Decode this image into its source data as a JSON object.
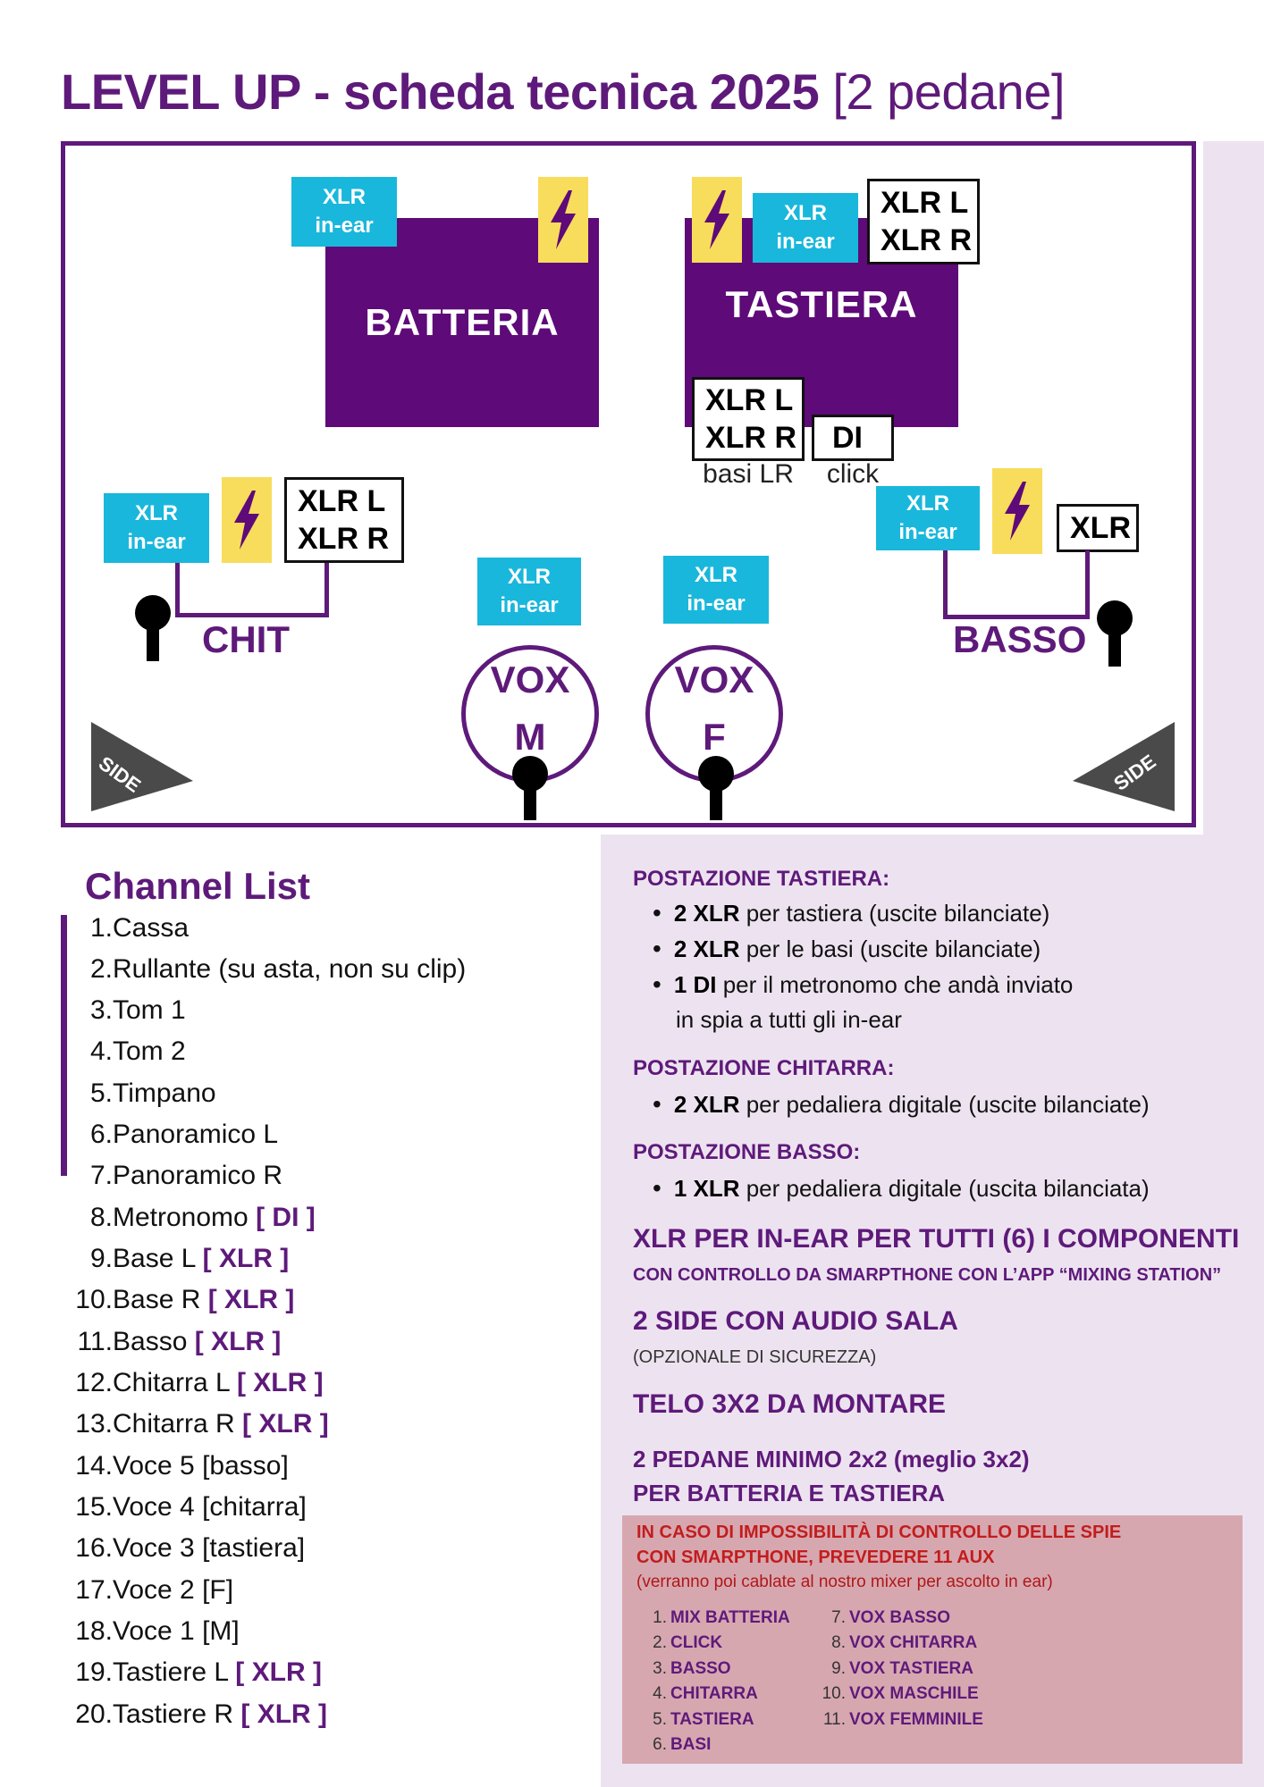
{
  "title": {
    "main": "LEVEL UP - scheda tecnica 2025",
    "sub": "[2 pedane]"
  },
  "stage": {
    "batteria": "BATTERIA",
    "tastiera": "TASTIERA",
    "xlr_inear": [
      "XLR",
      "in-ear"
    ],
    "xlr_lr": [
      "XLR L",
      "XLR R"
    ],
    "di": "DI",
    "basi_lr": "basi LR",
    "click": "click",
    "xlr": "XLR",
    "chit": "CHIT",
    "basso": "BASSO",
    "vox_label": "VOX",
    "vox_m": "M",
    "vox_f": "F",
    "side": "SIDE"
  },
  "channel_list": {
    "title": "Channel List",
    "items": [
      {
        "n": "1.",
        "text": "Cassa",
        "tag": ""
      },
      {
        "n": "2.",
        "text": "Rullante (su asta, non su clip)",
        "tag": ""
      },
      {
        "n": "3.",
        "text": "Tom 1",
        "tag": ""
      },
      {
        "n": "4.",
        "text": "Tom 2",
        "tag": ""
      },
      {
        "n": "5.",
        "text": "Timpano",
        "tag": ""
      },
      {
        "n": "6.",
        "text": "Panoramico L",
        "tag": ""
      },
      {
        "n": "7.",
        "text": "Panoramico R",
        "tag": ""
      },
      {
        "n": "8.",
        "text": "Metronomo",
        "tag": "[ DI ]"
      },
      {
        "n": "9.",
        "text": "Base L",
        "tag": "[ XLR ]"
      },
      {
        "n": "10.",
        "text": "Base R",
        "tag": "[ XLR ]"
      },
      {
        "n": "11.",
        "text": "Basso",
        "tag": "[ XLR ]"
      },
      {
        "n": "12.",
        "text": "Chitarra L",
        "tag": "[ XLR ]"
      },
      {
        "n": "13.",
        "text": "Chitarra R",
        "tag": "[ XLR ]"
      },
      {
        "n": "14.",
        "text": "Voce 5 [basso]",
        "tag": ""
      },
      {
        "n": "15.",
        "text": "Voce 4 [chitarra]",
        "tag": ""
      },
      {
        "n": "16.",
        "text": "Voce 3 [tastiera]",
        "tag": ""
      },
      {
        "n": "17.",
        "text": "Voce 2 [F]",
        "tag": ""
      },
      {
        "n": "18.",
        "text": "Voce 1 [M]",
        "tag": ""
      },
      {
        "n": "19.",
        "text": "Tastiere L",
        "tag": "[ XLR ]"
      },
      {
        "n": "20.",
        "text": "Tastiere R",
        "tag": "[ XLR ]"
      }
    ]
  },
  "requirements": {
    "tastiera": {
      "heading": "POSTAZIONE TASTIERA:",
      "b1_bold": "2 XLR",
      "b1_text": " per tastiera (uscite bilanciate)",
      "b2_bold": "2 XLR",
      "b2_text": " per le basi (uscite bilanciate)",
      "b3_bold": "1 DI",
      "b3_text": " per il metronomo che andà inviato",
      "b3_cont": "in spia a tutti gli in-ear"
    },
    "chitarra": {
      "heading": "POSTAZIONE CHITARRA:",
      "b1_bold": "2 XLR",
      "b1_text": " per pedaliera digitale (uscite bilanciate)"
    },
    "basso": {
      "heading": "POSTAZIONE BASSO:",
      "b1_bold": "1 XLR",
      "b1_text": " per pedaliera digitale (uscita bilanciata)"
    },
    "inear_heading": "XLR PER IN-EAR PER TUTTI (6) I COMPONENTI",
    "inear_sub": "CON CONTROLLO DA SMARPTHONE CON L’APP “MIXING STATION”",
    "side_heading": "2 SIDE CON AUDIO SALA",
    "side_sub": "(OPZIONALE DI SICUREZZA)",
    "telo": "TELO 3X2 DA MONTARE",
    "pedane_1": "2 PEDANE MINIMO 2x2 (meglio 3x2)",
    "pedane_2": "PER BATTERIA E TASTIERA"
  },
  "aux": {
    "title_1": "IN CASO DI IMPOSSIBILITÀ DI CONTROLLO DELLE SPIE",
    "title_2": "CON SMARPTHONE, PREVEDERE 11 AUX",
    "note": "(verranno poi cablate al nostro mixer per ascolto in ear)",
    "left": [
      {
        "n": "1.",
        "text": "MIX BATTERIA"
      },
      {
        "n": "2.",
        "text": "CLICK"
      },
      {
        "n": "3.",
        "text": "BASSO"
      },
      {
        "n": "4.",
        "text": "CHITARRA"
      },
      {
        "n": "5.",
        "text": "TASTIERA"
      },
      {
        "n": "6.",
        "text": "BASI"
      }
    ],
    "right": [
      {
        "n": "7.",
        "text": "VOX BASSO"
      },
      {
        "n": "8.",
        "text": "VOX CHITARRA"
      },
      {
        "n": "9.",
        "text": "VOX TASTIERA"
      },
      {
        "n": "10.",
        "text": "VOX MASCHILE"
      },
      {
        "n": "11.",
        "text": "VOX FEMMINILE"
      }
    ]
  },
  "colors": {
    "purple": "#5e1a7a",
    "cyan": "#19b7dc",
    "yellow": "#f8dc5c",
    "panel": "#ede3f0",
    "aux_box": "#d7a7b0",
    "red": "#c21d1d"
  },
  "icons": [
    "lightning-icon",
    "microphone-icon",
    "side-monitor-icon"
  ]
}
